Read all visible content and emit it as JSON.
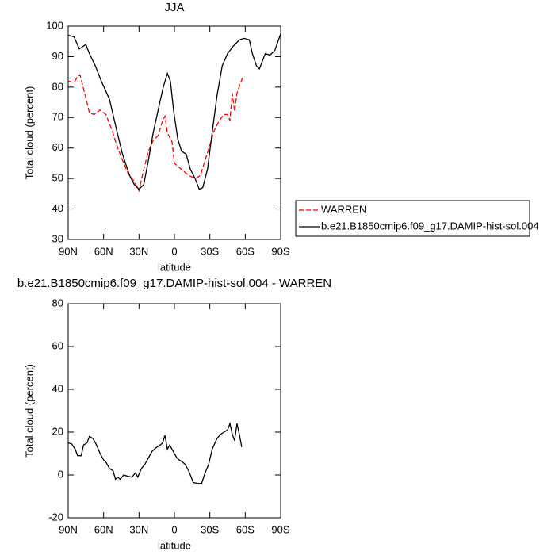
{
  "chart_data": [
    {
      "type": "line",
      "title": "JJA",
      "xlabel": "latitude",
      "ylabel": "Total cloud (percent)",
      "xlim": [
        90,
        -90
      ],
      "xticks": [
        {
          "value": 90,
          "label": "90N"
        },
        {
          "value": 60,
          "label": "60N"
        },
        {
          "value": 30,
          "label": "30N"
        },
        0,
        {
          "value": -30,
          "label": "30S"
        },
        {
          "value": -60,
          "label": "60S"
        },
        {
          "value": -90,
          "label": "90S"
        }
      ],
      "ylim": [
        30,
        100
      ],
      "yticks": [
        30,
        40,
        50,
        60,
        70,
        80,
        90,
        100
      ],
      "series": [
        {
          "name": "WARREN",
          "color": "#ff0000",
          "dash": true,
          "x": [
            90,
            85,
            82,
            80,
            76,
            72,
            68,
            63,
            58,
            53,
            48,
            43,
            39,
            34,
            30,
            26,
            22,
            18,
            14,
            10,
            8,
            6,
            2,
            0,
            -6,
            -12,
            -18,
            -22,
            -26,
            -30,
            -34,
            -38,
            -42,
            -45,
            -47,
            -49,
            -51,
            -53,
            -58
          ],
          "values": [
            82,
            81.5,
            83.5,
            84,
            78,
            71.5,
            71,
            72.5,
            71,
            66,
            60,
            55,
            51.5,
            49,
            46,
            53,
            59,
            62.5,
            64,
            69,
            70.5,
            65,
            62,
            55,
            53,
            51,
            50,
            51,
            56,
            61,
            66,
            69,
            71,
            71,
            69,
            78,
            72,
            78,
            83.5
          ]
        },
        {
          "name": "b.e21.B1850cmip6.f09_g17.DAMIP-hist-sol.004",
          "color": "#000000",
          "dash": false,
          "x": [
            90,
            85,
            80.6,
            75,
            72,
            67,
            62,
            55,
            49,
            44,
            38,
            34,
            30,
            26,
            22,
            18,
            13.5,
            9.5,
            6,
            3.4,
            0.6,
            -2.8,
            -6,
            -10,
            -13.5,
            -17.5,
            -21,
            -24,
            -28,
            -32,
            -36,
            -40.5,
            -45,
            -50,
            -55,
            -59,
            -63.5,
            -66,
            -69.5,
            -72,
            -77,
            -81,
            -85,
            -90
          ],
          "values": [
            97,
            96.5,
            92.5,
            94,
            91,
            87,
            82,
            76,
            66,
            58,
            51,
            48,
            46.5,
            48,
            56,
            65,
            73,
            80,
            84.5,
            82,
            72,
            63,
            59,
            58,
            53,
            50,
            46.5,
            47,
            53,
            65,
            77,
            87,
            91,
            93.5,
            95.5,
            96,
            95.5,
            91,
            87,
            86,
            91,
            90.5,
            92,
            97.5
          ]
        }
      ]
    },
    {
      "type": "line",
      "title": "b.e21.B1850cmip6.f09_g17.DAMIP-hist-sol.004 - WARREN",
      "xlabel": "latitude",
      "ylabel": "Total cloud (percent)",
      "xlim": [
        90,
        -90
      ],
      "xticks": [
        {
          "value": 90,
          "label": "90N"
        },
        {
          "value": 60,
          "label": "60N"
        },
        {
          "value": 30,
          "label": "30N"
        },
        0,
        {
          "value": -30,
          "label": "30S"
        },
        {
          "value": -60,
          "label": "60S"
        },
        {
          "value": -90,
          "label": "90S"
        }
      ],
      "ylim": [
        -20,
        80
      ],
      "yticks": [
        -20,
        0,
        20,
        40,
        60,
        80
      ],
      "series": [
        {
          "color": "#000000",
          "dash": false,
          "x": [
            90,
            87,
            84,
            82,
            79,
            77,
            74,
            72,
            69,
            66,
            63,
            60,
            58,
            55,
            52,
            50,
            48,
            46,
            43,
            40,
            36,
            33,
            31,
            28,
            25,
            22,
            19,
            15,
            12,
            10,
            8,
            6,
            4,
            2,
            0,
            -2,
            -4,
            -7,
            -9,
            -12,
            -16,
            -20,
            -23,
            -26,
            -29,
            -32,
            -36,
            -39,
            -42,
            -45,
            -47,
            -49,
            -51,
            -53,
            -55,
            -57
          ],
          "values": [
            15,
            14.5,
            12,
            9,
            9,
            14,
            15,
            18,
            17,
            14,
            10,
            7,
            6,
            3,
            2,
            -2,
            -1,
            -2,
            0,
            -0.5,
            -1,
            1,
            -1,
            3,
            5,
            8,
            11,
            13,
            14,
            15,
            18.5,
            12,
            14,
            12,
            10,
            8,
            7,
            6,
            5,
            2,
            -3.5,
            -4,
            -4,
            1,
            5,
            12,
            17,
            19,
            20,
            21,
            24,
            19,
            16,
            24,
            19,
            13
          ]
        }
      ]
    }
  ]
}
